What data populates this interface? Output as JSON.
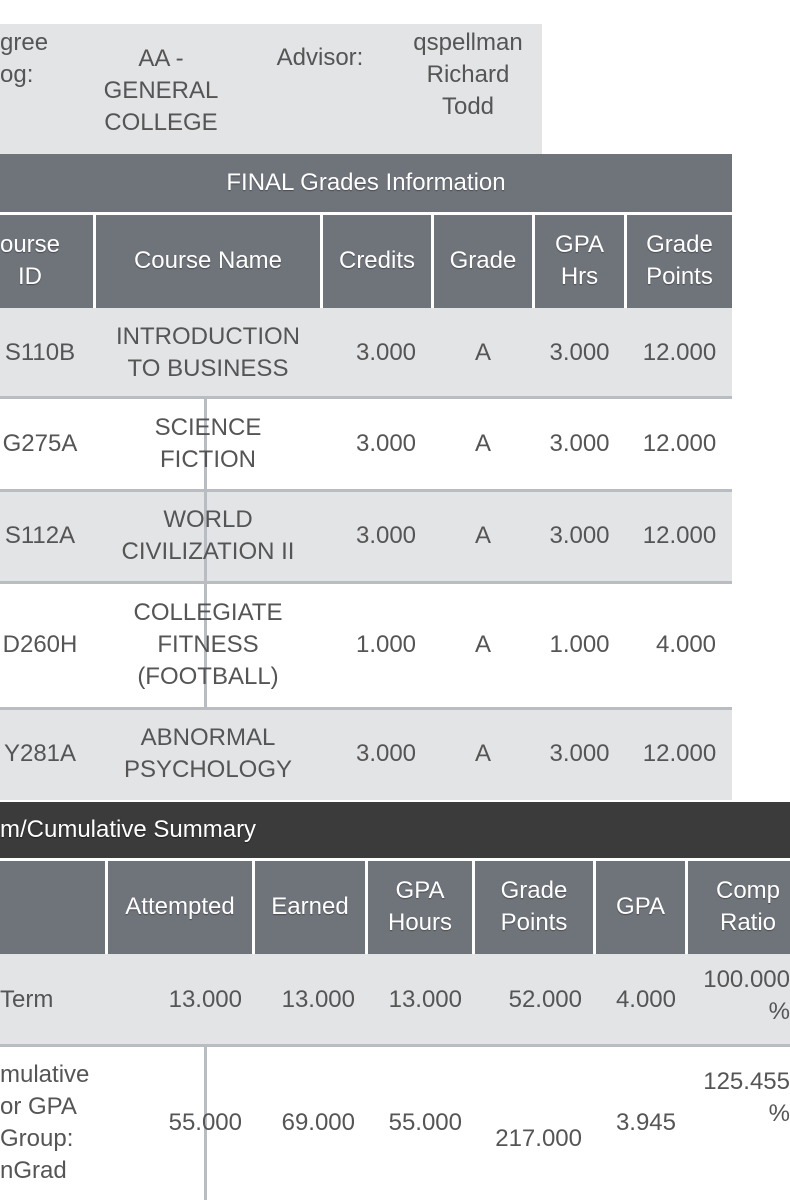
{
  "info": {
    "degree_label": "gree\nog:",
    "degree_value": "AA -\nGENERAL\nCOLLEGE",
    "advisor_label": "Advisor:",
    "advisor_value": "qspellman\nRichard\nTodd"
  },
  "grades": {
    "title": "FINAL Grades Information",
    "headers": {
      "course_id": "ourse\nID",
      "course_name": "Course Name",
      "credits": "Credits",
      "grade": "Grade",
      "gpa_hrs": "GPA\nHrs",
      "grade_points": "Grade\nPoints"
    },
    "rows": [
      {
        "id": "S110B",
        "name": "INTRODUCTION\nTO BUSINESS",
        "credits": "3.000",
        "grade": "A",
        "gpa_hrs": "3.000",
        "points": "12.000"
      },
      {
        "id": "G275A",
        "name": "SCIENCE\nFICTION",
        "credits": "3.000",
        "grade": "A",
        "gpa_hrs": "3.000",
        "points": "12.000"
      },
      {
        "id": "S112A",
        "name": "WORLD\nCIVILIZATION II",
        "credits": "3.000",
        "grade": "A",
        "gpa_hrs": "3.000",
        "points": "12.000"
      },
      {
        "id": "D260H",
        "name": "COLLEGIATE\nFITNESS\n(FOOTBALL)",
        "credits": "1.000",
        "grade": "A",
        "gpa_hrs": "1.000",
        "points": "4.000"
      },
      {
        "id": "Y281A",
        "name": "ABNORMAL\nPSYCHOLOGY",
        "credits": "3.000",
        "grade": "A",
        "gpa_hrs": "3.000",
        "points": "12.000"
      }
    ]
  },
  "summary": {
    "title": "m/Cumulative Summary",
    "headers": {
      "attempted": "Attempted",
      "earned": "Earned",
      "gpa_hours": "GPA\nHours",
      "grade_points": "Grade\nPoints",
      "gpa": "GPA",
      "comp_ratio": "Comp\nRatio"
    },
    "rows": [
      {
        "label": "Term",
        "attempted": "13.000",
        "earned": "13.000",
        "gpa_hours": "13.000",
        "grade_points": "52.000",
        "gpa": "4.000",
        "comp_ratio": "100.000\n%"
      },
      {
        "label": "mulative\nor GPA\nGroup:\nnGrad",
        "attempted": "55.000",
        "earned": "69.000",
        "gpa_hours": "55.000",
        "grade_points": "217.000",
        "gpa": "3.945",
        "comp_ratio": "125.455\n%"
      }
    ]
  }
}
